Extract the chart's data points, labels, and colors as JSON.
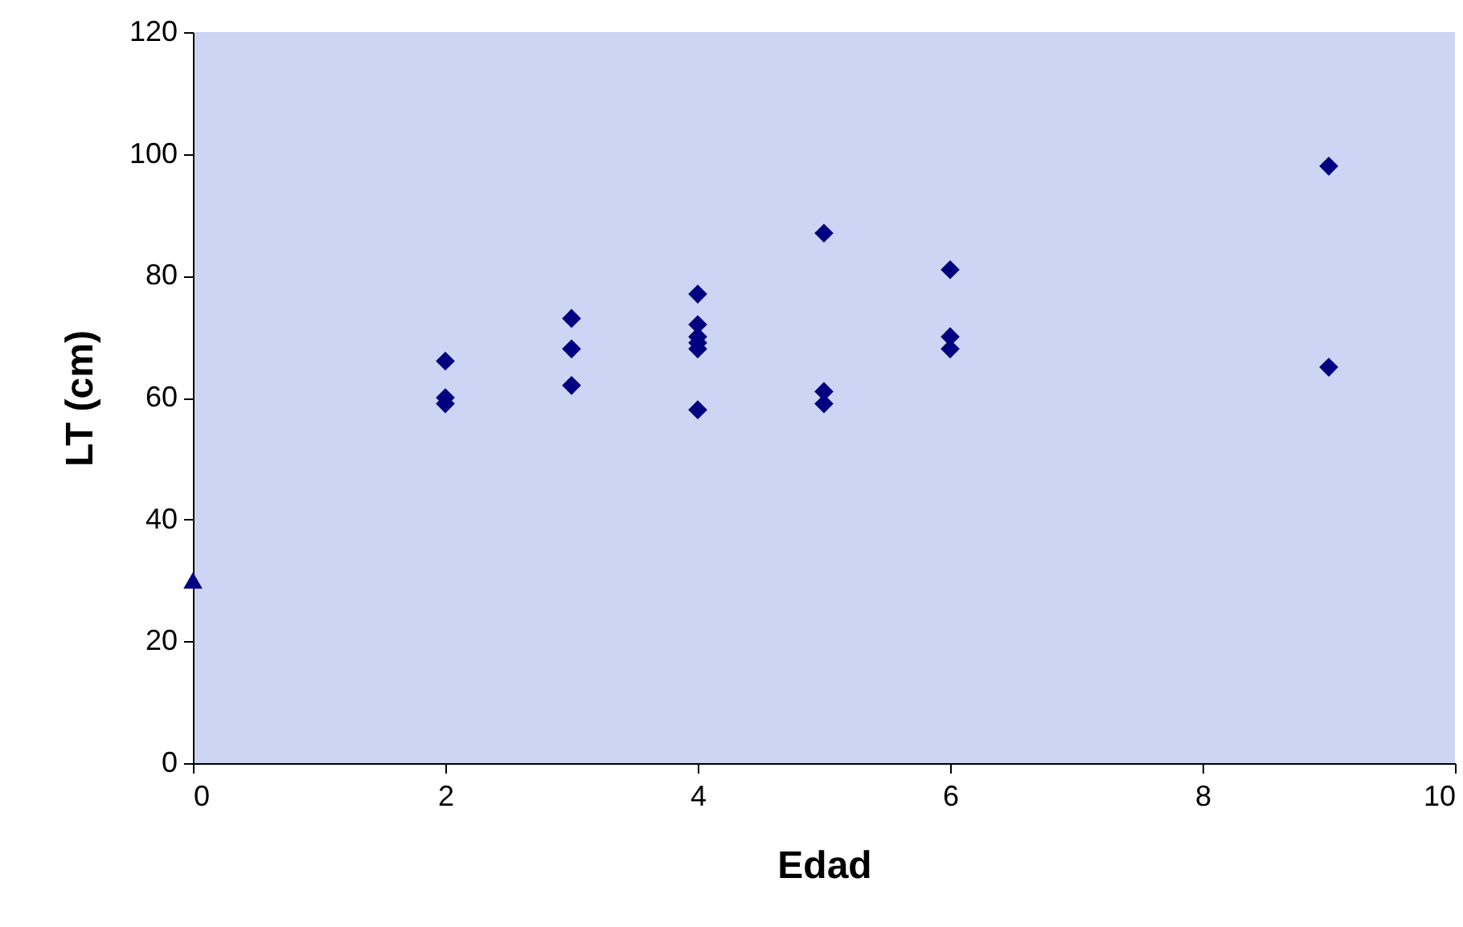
{
  "chart_data": {
    "type": "scatter",
    "xlabel": "Edad",
    "ylabel": "LT (cm)",
    "xlim": [
      0,
      10
    ],
    "xticks": [
      0,
      2,
      4,
      6,
      8,
      10
    ],
    "ylim": [
      0,
      120
    ],
    "yticks": [
      0,
      20,
      40,
      60,
      80,
      100,
      120
    ],
    "grid": false,
    "legend": false,
    "series": [
      {
        "color": "#000080",
        "marker": "diamond",
        "x": [
          2,
          2,
          2,
          3,
          3,
          3,
          4,
          4,
          4,
          4,
          4,
          4,
          5,
          5,
          5,
          6,
          6,
          6,
          9,
          9
        ],
        "values": [
          66,
          60,
          59,
          73,
          68,
          62,
          77,
          72,
          70,
          69,
          68,
          58,
          87,
          61,
          59,
          81,
          70,
          68,
          98,
          65
        ]
      },
      {
        "color": "#000080",
        "marker": "triangle",
        "x": [
          0
        ],
        "values": [
          30
        ]
      }
    ]
  }
}
